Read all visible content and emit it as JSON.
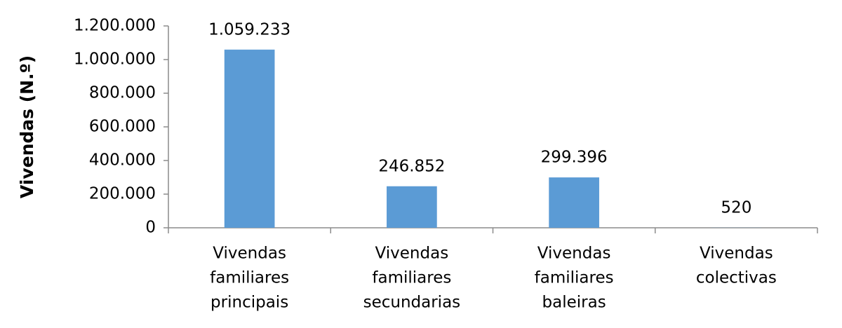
{
  "chart_data": {
    "type": "bar",
    "y_label": "Vivendas (N.º)",
    "categories": [
      [
        "Vivendas",
        "familiares",
        "principais"
      ],
      [
        "Vivendas",
        "familiares",
        "secundarias"
      ],
      [
        "Vivendas",
        "familiares",
        "baleiras"
      ],
      [
        "Vivendas",
        "colectivas"
      ]
    ],
    "values": [
      1059233,
      246852,
      299396,
      520
    ],
    "value_labels": [
      "1.059.233",
      "246.852",
      "299.396",
      "520"
    ],
    "color": "#5b9bd5",
    "ylim": [
      0,
      1200000
    ],
    "yticks": [
      0,
      {
        "value": 200000,
        "label": "200.000"
      },
      {
        "value": 400000,
        "label": "400.000"
      },
      {
        "value": 600000,
        "label": "600.000"
      },
      {
        "value": 800000,
        "label": "800.000"
      },
      {
        "value": 1000000,
        "label": "1.000.000"
      },
      {
        "value": 1200000,
        "label": "1.200.000"
      }
    ],
    "grid": false
  }
}
